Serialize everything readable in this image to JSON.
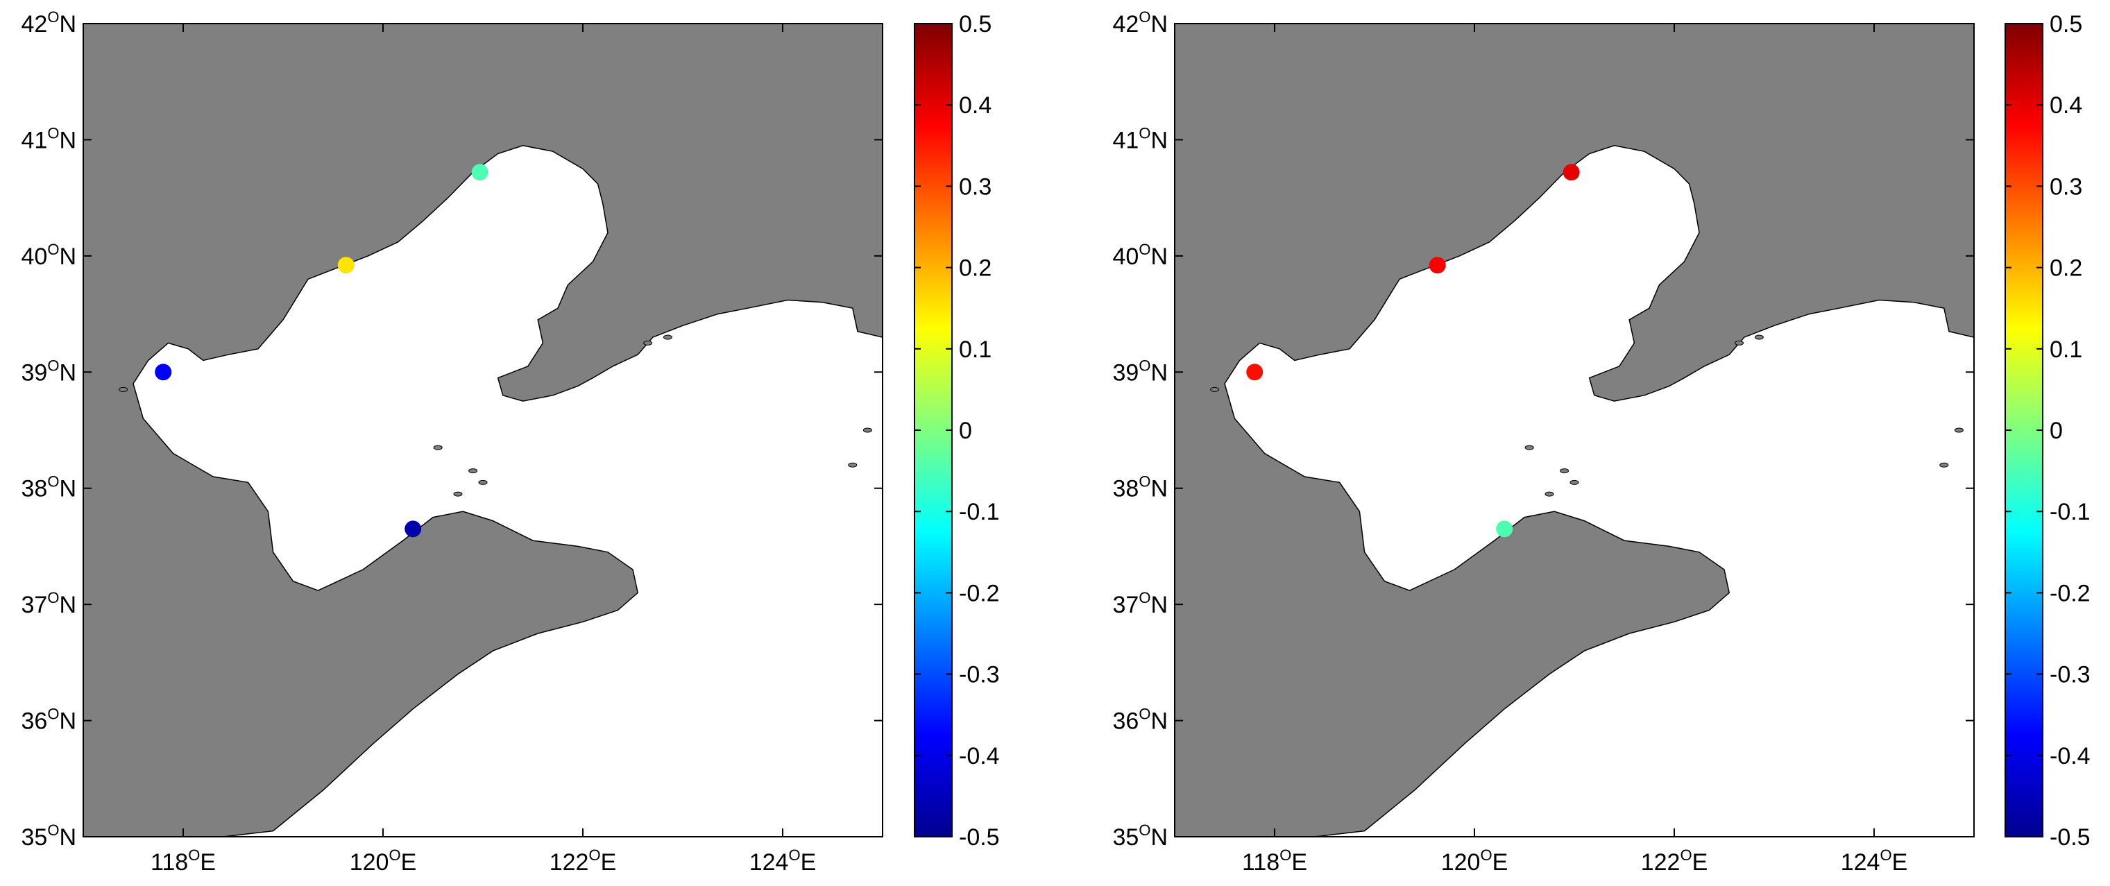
{
  "colors": {
    "land": "#808080",
    "sea": "#ffffff",
    "coast": "#000000",
    "colormap": "jet"
  },
  "map": {
    "lon_range": [
      117,
      125
    ],
    "lat_range": [
      35,
      42
    ],
    "x_ticks": [
      {
        "deg": "118",
        "sup": "O",
        "hemi": "E",
        "lon": 118
      },
      {
        "deg": "120",
        "sup": "O",
        "hemi": "E",
        "lon": 120
      },
      {
        "deg": "122",
        "sup": "O",
        "hemi": "E",
        "lon": 122
      },
      {
        "deg": "124",
        "sup": "O",
        "hemi": "E",
        "lon": 124
      }
    ],
    "y_ticks": [
      {
        "deg": "42",
        "sup": "O",
        "hemi": "N",
        "lat": 42
      },
      {
        "deg": "41",
        "sup": "O",
        "hemi": "N",
        "lat": 41
      },
      {
        "deg": "40",
        "sup": "O",
        "hemi": "N",
        "lat": 40
      },
      {
        "deg": "39",
        "sup": "O",
        "hemi": "N",
        "lat": 39
      },
      {
        "deg": "38",
        "sup": "O",
        "hemi": "N",
        "lat": 38
      },
      {
        "deg": "37",
        "sup": "O",
        "hemi": "N",
        "lat": 37
      },
      {
        "deg": "36",
        "sup": "O",
        "hemi": "N",
        "lat": 36
      },
      {
        "deg": "35",
        "sup": "O",
        "hemi": "N",
        "lat": 35
      }
    ]
  },
  "colorbar": {
    "range": [
      -0.5,
      0.5
    ],
    "tick_labels": [
      "0.5",
      "0.4",
      "0.3",
      "0.2",
      "0.1",
      "0",
      "-0.1",
      "-0.2",
      "-0.3",
      "-0.4",
      "-0.5"
    ],
    "tick_values": [
      0.5,
      0.4,
      0.3,
      0.2,
      0.1,
      0,
      -0.1,
      -0.2,
      -0.3,
      -0.4,
      -0.5
    ]
  },
  "panels": [
    {
      "stations": [
        {
          "lon": 117.8,
          "lat": 39.0,
          "value": -0.38
        },
        {
          "lon": 119.63,
          "lat": 39.92,
          "value": 0.15
        },
        {
          "lon": 120.97,
          "lat": 40.72,
          "value": -0.05
        },
        {
          "lon": 120.3,
          "lat": 37.65,
          "value": -0.47
        }
      ]
    },
    {
      "stations": [
        {
          "lon": 117.8,
          "lat": 39.0,
          "value": 0.36
        },
        {
          "lon": 119.63,
          "lat": 39.92,
          "value": 0.38
        },
        {
          "lon": 120.97,
          "lat": 40.72,
          "value": 0.4
        },
        {
          "lon": 120.3,
          "lat": 37.65,
          "value": -0.05
        }
      ]
    }
  ]
}
